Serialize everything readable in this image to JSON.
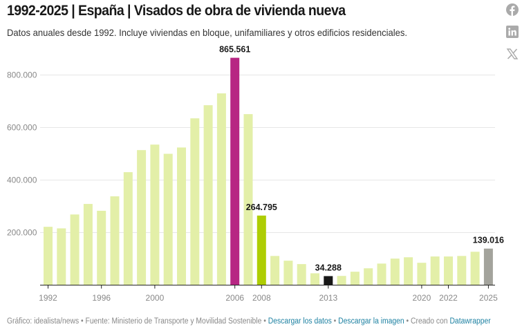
{
  "header": {
    "title": "1992-2025 | España | Visados de obra de vivienda nueva",
    "subtitle": "Datos anuales desde 1992. Incluye viviendas en bloque, unifamiliares y otros edificios residenciales."
  },
  "social": [
    {
      "icon": "facebook-icon"
    },
    {
      "icon": "linkedin-icon"
    },
    {
      "icon": "x-icon"
    }
  ],
  "chart_data": {
    "type": "bar",
    "title": "",
    "xlabel": "",
    "ylabel": "",
    "ylim": [
      0,
      900000
    ],
    "grid": true,
    "y_ticks": [
      200000,
      400000,
      600000,
      800000
    ],
    "y_tick_labels": [
      "200.000",
      "400.000",
      "600.000",
      "800.000"
    ],
    "x_tick_labels": [
      "1992",
      "1996",
      "2000",
      "2006",
      "2008",
      "2013",
      "2020",
      "2022",
      "2025"
    ],
    "categories": [
      "1992",
      "1993",
      "1994",
      "1995",
      "1996",
      "1997",
      "1998",
      "1999",
      "2000",
      "2001",
      "2002",
      "2003",
      "2004",
      "2005",
      "2006",
      "2007",
      "2008",
      "2009",
      "2010",
      "2011",
      "2012",
      "2013",
      "2014",
      "2015",
      "2016",
      "2017",
      "2018",
      "2019",
      "2020",
      "2021",
      "2022",
      "2023",
      "2024",
      "2025"
    ],
    "values": [
      222000,
      216000,
      269000,
      309000,
      283000,
      338000,
      430000,
      514000,
      535000,
      500000,
      524000,
      635000,
      685000,
      730000,
      865561,
      651000,
      264795,
      111000,
      93000,
      80000,
      45000,
      34288,
      35000,
      51000,
      64000,
      82000,
      101000,
      106000,
      85000,
      109000,
      109000,
      111000,
      127000,
      139016
    ],
    "colors": {
      "default": "#e3efa8",
      "2006": "#b72683",
      "2008": "#aecd04",
      "2013": "#181818",
      "2025": "#a3a39c"
    },
    "annotations": [
      {
        "year": "2006",
        "label": "865.561"
      },
      {
        "year": "2008",
        "label": "264.795"
      },
      {
        "year": "2013",
        "label": "34.288"
      },
      {
        "year": "2025",
        "label": "139.016"
      }
    ]
  },
  "footer": {
    "credit": "Gráfico: idealista/news",
    "source": "Fuente: Ministerio de Transporte y Movilidad Sostenible",
    "download_data": "Descargar los datos",
    "download_image": "Descargar la imagen",
    "created_with": "Creado con",
    "datawrapper": "Datawrapper",
    "sep": " • "
  }
}
